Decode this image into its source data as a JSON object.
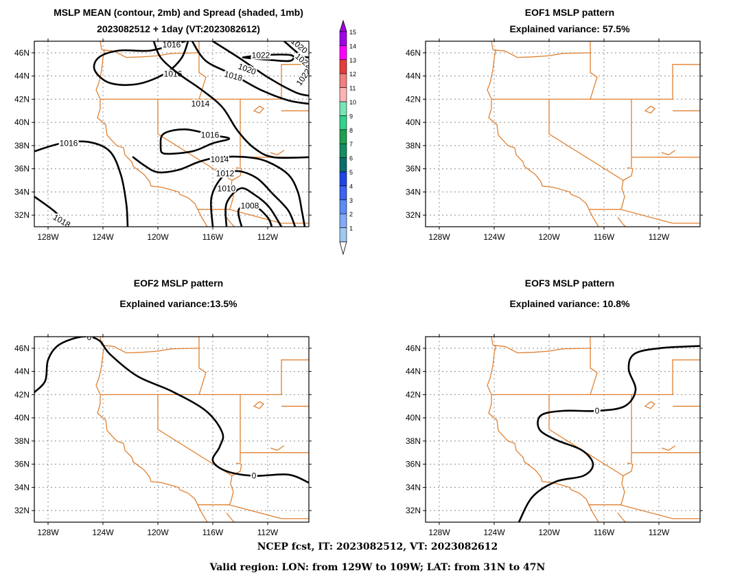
{
  "panels": [
    {
      "title1": "MSLP MEAN (contour, 2mb) and Spread (shaded, 1mb)",
      "title2": "2023082512 + 1day (VT:2023082612)"
    },
    {
      "title1": "EOF1 MSLP pattern",
      "title2": "Explained variance: 57.5%"
    },
    {
      "title1": "EOF2 MSLP pattern",
      "title2": "Explained variance:13.5%"
    },
    {
      "title1": "EOF3 MSLP pattern",
      "title2": "Explained variance: 10.8%"
    }
  ],
  "axes": {
    "lat_labels": [
      "32N",
      "34N",
      "36N",
      "38N",
      "40N",
      "42N",
      "44N",
      "46N"
    ],
    "lat_values": [
      32,
      34,
      36,
      38,
      40,
      42,
      44,
      46
    ],
    "lon_labels": [
      "128W",
      "124W",
      "120W",
      "116W",
      "112W"
    ],
    "lon_values": [
      -128,
      -124,
      -120,
      -116,
      -112
    ],
    "lon_range": [
      -129,
      -109
    ],
    "lat_range": [
      31,
      47
    ]
  },
  "mean_contour_labels": [
    "1016",
    "1016",
    "1014",
    "1016",
    "1016",
    "1014",
    "1012",
    "1010",
    "1008",
    "1018",
    "1020",
    "1022",
    "1018",
    "1016",
    "1020",
    "1022"
  ],
  "zero_labels": [
    "0",
    "0",
    "0"
  ],
  "colorbar": {
    "levels": [
      "1",
      "2",
      "3",
      "4",
      "5",
      "6",
      "7",
      "8",
      "9",
      "10",
      "11",
      "12",
      "13",
      "14",
      "15"
    ],
    "colors": [
      "#a0c8f0",
      "#82aaf5",
      "#5a8cf5",
      "#3c64f0",
      "#1e46e6",
      "#0a6e6e",
      "#148c64",
      "#1ea050",
      "#32d28c",
      "#78e6b4",
      "#ffb4b4",
      "#f08080",
      "#e63c3c",
      "#ff00ff",
      "#a000e6"
    ]
  },
  "map_colors": {
    "borders": "#e08030",
    "contours": "#000000",
    "grid": "#a0a0a0"
  },
  "footer": {
    "line1": "NCEP fcst, IT: 2023082512, VT: 2023082612",
    "line2": "Valid region: LON: from 129W to 109W; LAT: from 31N to 47N"
  }
}
